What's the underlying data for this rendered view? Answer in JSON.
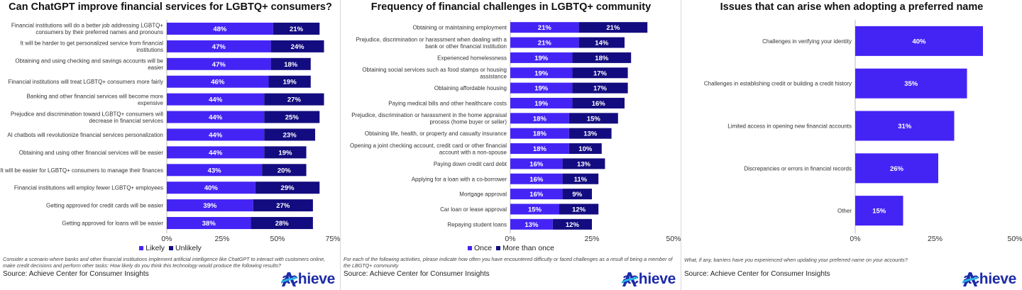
{
  "brand": {
    "name": "achieve",
    "primary_color": "#4424f5",
    "secondary_color": "#130c80",
    "logo_color": "#1c2ba8"
  },
  "panels": [
    {
      "title": "Can ChatGPT improve financial services for LGBTQ+ consumers?",
      "note": "Consider a scenario where banks and other financial institutions implement artificial intelligence like ChatGPT to interact with customers online, make credit decisions and perform other tasks: How likely do you think this technology would produce the following results?",
      "source": "Source: Achieve Center for Consumer Insights"
    },
    {
      "title": "Frequency of financial challenges in LGBTQ+ community",
      "note": "For each of the following activities, please indicate how often you have encountered difficulty or faced challenges as a result of being a member of the LBGTQ+ community",
      "source": "Source: Achieve Center for Consumer Insights"
    },
    {
      "title": "Issues that can arise when adopting a preferred name",
      "note": "What, if any, barriers have you experienced when updating your preferred name on your accounts?",
      "source": "Source: Achieve Center for Consumer Insights"
    }
  ],
  "chart_data": [
    {
      "type": "bar",
      "orientation": "horizontal",
      "stacked": true,
      "title": "Can ChatGPT improve financial services for LGBTQ+ consumers?",
      "categories": [
        [
          "Financial institutions will do a better job addressing LGBTQ+",
          "consumers by their preferred names and pronouns"
        ],
        [
          "It will be harder to get personalized service from financial",
          "institutions"
        ],
        [
          "Obtaining and using checking and savings accounts will be",
          "easier"
        ],
        [
          "Financial institutions will treat LGBTQ+ consumers more fairly"
        ],
        [
          "Banking and other financial services will become more",
          "expensive"
        ],
        [
          "Prejudice and discrimination toward LGBTQ+ consumers will",
          "decrease in financial services"
        ],
        [
          "AI chatbots will revolutionize financial services personalization"
        ],
        [
          "Obtaining and using other financial services will be easier"
        ],
        [
          "It will be easier for LGBTQ+ consumers to manage their finances"
        ],
        [
          "Financial institutions will employ fewer LGBTQ+ employees"
        ],
        [
          "Getting approved for credit cards will be easier"
        ],
        [
          "Getting approved for loans will be easier"
        ]
      ],
      "series": [
        {
          "name": "Likely",
          "color": "#4424f5",
          "values": [
            48,
            47,
            47,
            46,
            44,
            44,
            44,
            44,
            43,
            40,
            39,
            38
          ]
        },
        {
          "name": "Unlikely",
          "color": "#130c80",
          "values": [
            21,
            24,
            18,
            19,
            27,
            25,
            23,
            19,
            20,
            29,
            27,
            28
          ]
        }
      ],
      "xlim": [
        0,
        75
      ],
      "ticks": [
        0,
        25,
        50,
        75
      ],
      "tick_labels": [
        "0%",
        "25%",
        "50%",
        "75%"
      ],
      "legend": "bottom"
    },
    {
      "type": "bar",
      "orientation": "horizontal",
      "stacked": true,
      "title": "Frequency of financial challenges in LGBTQ+ community",
      "categories": [
        [
          "Obtaining or maintaining employment"
        ],
        [
          "Prejudice, discrimination or harassment when dealing with a",
          "bank or other financial institution"
        ],
        [
          "Experienced homelessness"
        ],
        [
          "Obtaining social services such as food stamps or housing",
          "assistance"
        ],
        [
          "Obtaining affordable housing"
        ],
        [
          "Paying medical bills and other healthcare costs"
        ],
        [
          "Prejudice, discrimination or harassment in the home appraisal",
          "process (home buyer or seller)"
        ],
        [
          "Obtaining life, health, or property and casualty insurance"
        ],
        [
          "Opening a joint checking account, credit card or other financial",
          "account with a non-spouse"
        ],
        [
          "Paying down credit card debt"
        ],
        [
          "Applying for a loan with a co-borrower"
        ],
        [
          "Mortgage approval"
        ],
        [
          "Car loan or lease approval"
        ],
        [
          "Repaying student loans"
        ]
      ],
      "series": [
        {
          "name": "Once",
          "color": "#4424f5",
          "values": [
            21,
            21,
            19,
            19,
            19,
            19,
            18,
            18,
            18,
            16,
            16,
            16,
            15,
            13
          ]
        },
        {
          "name": "More than once",
          "color": "#130c80",
          "values": [
            21,
            14,
            18,
            17,
            17,
            16,
            15,
            13,
            10,
            13,
            11,
            9,
            12,
            12
          ]
        }
      ],
      "xlim": [
        0,
        50
      ],
      "ticks": [
        0,
        25,
        50
      ],
      "tick_labels": [
        "0%",
        "25%",
        "50%"
      ],
      "legend": "bottom"
    },
    {
      "type": "bar",
      "orientation": "horizontal",
      "stacked": false,
      "title": "Issues that can arise when adopting a preferred name",
      "categories": [
        [
          "Challenges in verifying your identity"
        ],
        [
          "Challenges in establishing credit or building a credit history"
        ],
        [
          "Limited access in opening new financial accounts"
        ],
        [
          "Discrepancies or errors in financial records"
        ],
        [
          "Other"
        ]
      ],
      "series": [
        {
          "color": "#4424f5",
          "values": [
            40,
            35,
            31,
            26,
            15
          ]
        }
      ],
      "xlim": [
        0,
        50
      ],
      "ticks": [
        0,
        25,
        50
      ],
      "tick_labels": [
        "0%",
        "25%",
        "50%"
      ]
    }
  ]
}
